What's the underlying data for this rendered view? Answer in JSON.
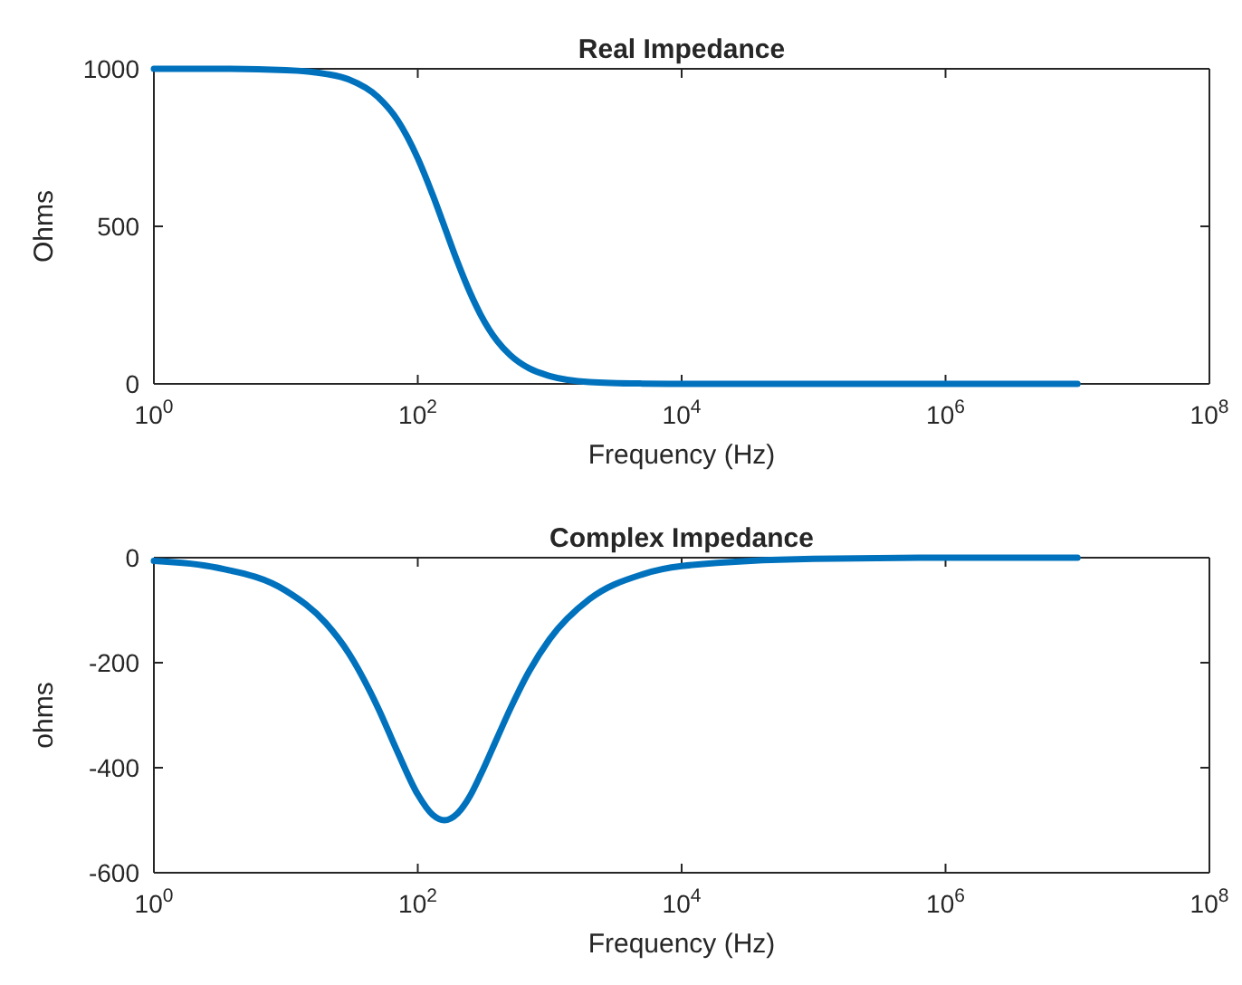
{
  "chart_data": [
    {
      "type": "line",
      "title": "Real Impedance",
      "xlabel": "Frequency (Hz)",
      "ylabel": "Ohms",
      "log": "x",
      "grid": false,
      "x": [
        1,
        3,
        10,
        20,
        30,
        50,
        70,
        100,
        130,
        159,
        200,
        250,
        300,
        400,
        500,
        700,
        1000,
        2000,
        5000,
        10000,
        100000,
        1000000,
        10000000
      ],
      "series": [
        {
          "color": "#0072bd",
          "values": [
            1000,
            1000,
            996,
            984,
            966,
            910,
            838,
            716,
            599,
            500,
            387,
            288,
            219,
            136,
            92,
            49,
            25,
            6,
            1,
            0,
            0,
            0,
            0
          ]
        }
      ],
      "xlim": [
        1,
        100000000
      ],
      "xticks": [
        {
          "value": 1,
          "label": "10$^{0}$"
        },
        {
          "value": 100,
          "label": "10$^{2}$"
        },
        {
          "value": 10000,
          "label": "10$^{4}$"
        },
        {
          "value": 1000000,
          "label": "10$^{6}$"
        },
        {
          "value": 100000000,
          "label": "10$^{8}$"
        }
      ],
      "ylim": [
        0,
        1000
      ],
      "yticks": [
        0,
        500,
        1000
      ]
    },
    {
      "type": "line",
      "title": "Complex Impedance",
      "xlabel": "Frequency (Hz)",
      "ylabel": "ohms",
      "log": "x",
      "grid": false,
      "x": [
        1,
        3,
        10,
        20,
        30,
        50,
        70,
        100,
        130,
        159,
        200,
        250,
        300,
        400,
        500,
        700,
        1000,
        2000,
        5000,
        10000,
        100000,
        1000000,
        10000000
      ],
      "series": [
        {
          "color": "#0072bd",
          "values": [
            -6,
            -19,
            -63,
            -124,
            -182,
            -286,
            -369,
            -451,
            -490,
            -500,
            -487,
            -453,
            -413,
            -343,
            -289,
            -216,
            -155,
            -79,
            -32,
            -16,
            -2,
            0,
            0
          ]
        }
      ],
      "xlim": [
        1,
        100000000
      ],
      "xticks": [
        {
          "value": 1,
          "label": "10$^{0}$"
        },
        {
          "value": 100,
          "label": "10$^{2}$"
        },
        {
          "value": 10000,
          "label": "10$^{4}$"
        },
        {
          "value": 1000000,
          "label": "10$^{6}$"
        },
        {
          "value": 100000000,
          "label": "10$^{8}$"
        }
      ],
      "ylim": [
        -600,
        0
      ],
      "yticks": [
        -600,
        -400,
        -200,
        0
      ]
    }
  ]
}
